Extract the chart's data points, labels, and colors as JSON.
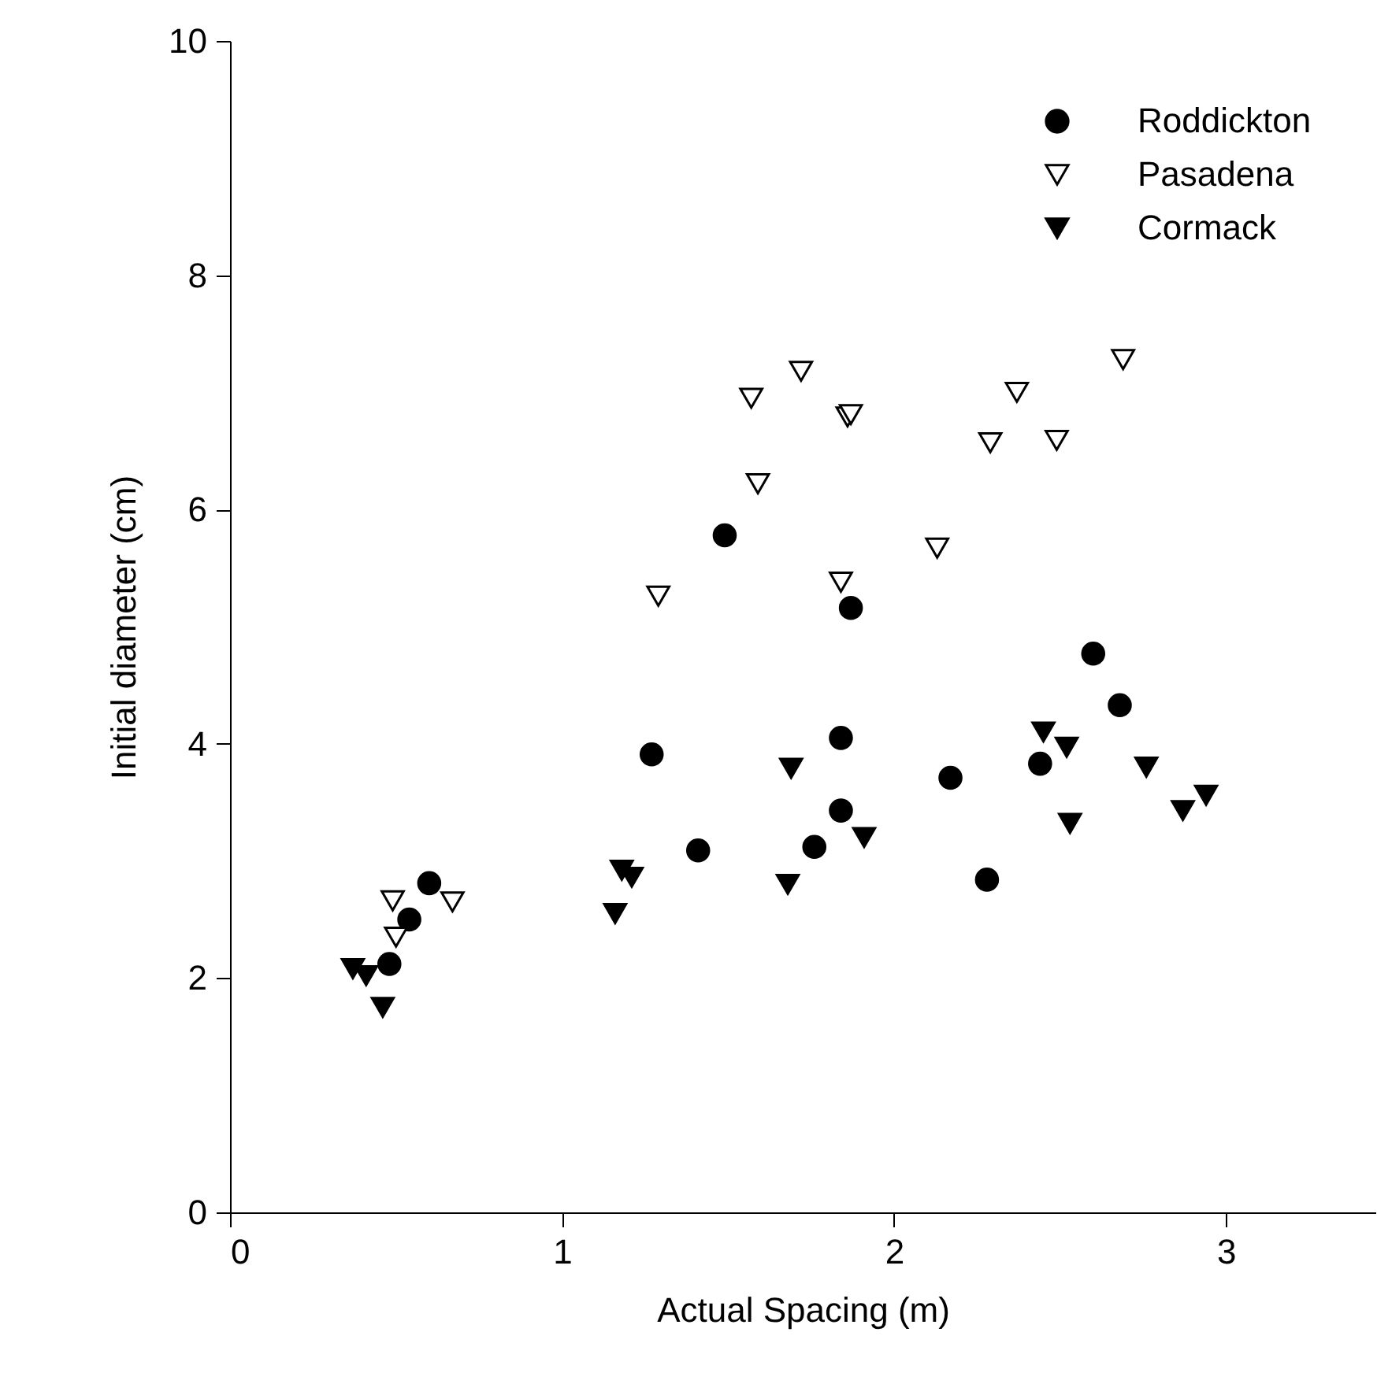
{
  "chart_data": {
    "type": "scatter",
    "xlabel": "Actual Spacing (m)",
    "ylabel": "Initial diameter (cm)",
    "xlim": [
      0,
      3.45
    ],
    "xticks": [
      0,
      1,
      2,
      3
    ],
    "ylim": [
      0,
      10
    ],
    "yticks": [
      0,
      2,
      4,
      6,
      8,
      10
    ],
    "grid": false,
    "legend": "top right",
    "series": [
      {
        "name": "Roddickton",
        "color": "#000000",
        "marker": "circle",
        "x": [
          0.48,
          0.54,
          0.6,
          1.27,
          1.41,
          1.49,
          1.76,
          1.84,
          1.84,
          1.87,
          2.17,
          2.28,
          2.44,
          2.6,
          2.68
        ],
        "values": [
          2.12,
          2.5,
          2.81,
          3.91,
          3.09,
          5.78,
          3.12,
          4.05,
          3.43,
          5.16,
          3.71,
          2.84,
          3.83,
          4.77,
          4.33
        ]
      },
      {
        "name": "Pasadena",
        "color": "#ffffff",
        "marker": "triangle",
        "x": [
          0.49,
          0.5,
          0.67,
          1.29,
          1.57,
          1.59,
          1.72,
          1.84,
          1.86,
          1.87,
          2.13,
          2.29,
          2.37,
          2.49,
          2.69
        ],
        "values": [
          2.66,
          2.35,
          2.65,
          5.26,
          6.95,
          6.22,
          7.18,
          5.38,
          6.79,
          6.81,
          5.67,
          6.57,
          7.0,
          6.59,
          7.28
        ]
      },
      {
        "name": "Cormack",
        "color": "#000000",
        "marker": "triangle",
        "x": [
          0.37,
          0.41,
          0.46,
          1.16,
          1.18,
          1.21,
          1.68,
          1.69,
          1.91,
          2.45,
          2.52,
          2.53,
          2.76,
          2.87,
          2.94
        ],
        "values": [
          2.08,
          2.02,
          1.75,
          2.55,
          2.92,
          2.86,
          2.8,
          3.79,
          3.2,
          4.1,
          3.97,
          3.32,
          3.8,
          3.43,
          3.56
        ]
      }
    ]
  }
}
